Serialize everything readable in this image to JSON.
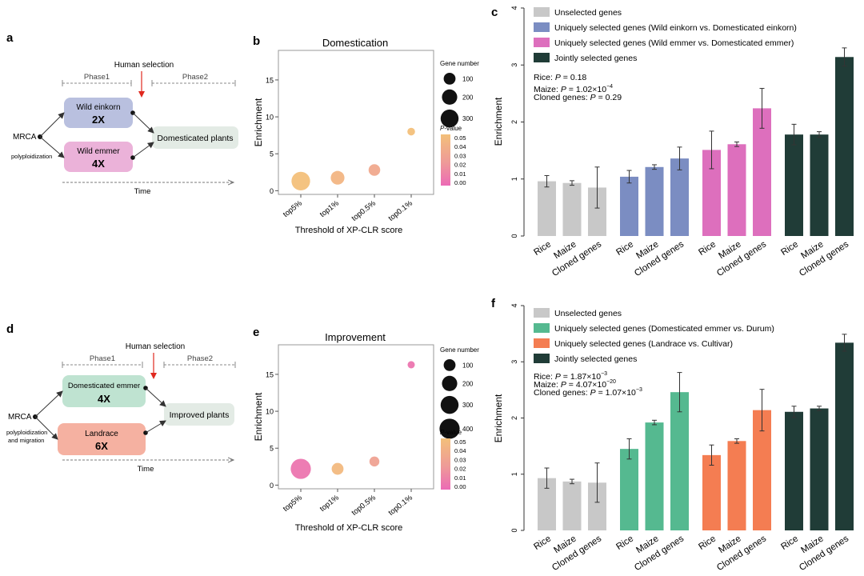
{
  "panel_labels": {
    "a": "a",
    "b": "b",
    "c": "c",
    "d": "d",
    "e": "e",
    "f": "f"
  },
  "colors": {
    "unselected": "#c8c8c8",
    "einkorn_sel": "#7b8dc2",
    "emmer_sel": "#dd6fbd",
    "joint": "#203c37",
    "durum_sel": "#55b990",
    "cultivar_sel": "#f47d52",
    "wild_einkorn_box": "#b9c0df",
    "wild_emmer_box": "#ebb2d9",
    "dom_emmer_box": "#bfe3d1",
    "landrace_box": "#f5b1a1",
    "plants_box": "#e3ebe5",
    "arrow_red": "#e0281e"
  },
  "diagrams": [
    {
      "human_selection": "Human selection",
      "phase1": "Phase1",
      "phase2": "Phase2",
      "mrca": "MRCA",
      "process": "polyploidization",
      "top_box": {
        "name": "Wild einkorn",
        "ploidy": "2X"
      },
      "bottom_box": {
        "name": "Wild emmer",
        "ploidy": "4X"
      },
      "target": "Domesticated plants",
      "time": "Time"
    },
    {
      "human_selection": "Human selection",
      "phase1": "Phase1",
      "phase2": "Phase2",
      "mrca": "MRCA",
      "process": "polyploidization",
      "process2": "and migration",
      "top_box": {
        "name": "Domesticated emmer",
        "ploidy": "4X"
      },
      "bottom_box": {
        "name": "Landrace",
        "ploidy": "6X"
      },
      "target": "Improved plants",
      "time": "Time"
    }
  ],
  "chart_data": [
    {
      "id": "b",
      "type": "scatter",
      "title": "Domestication",
      "xlabel": "Threshold of XP-CLR score",
      "ylabel": "Enrichment",
      "categories": [
        "top5%",
        "top1%",
        "top0.5%",
        "top0.1%"
      ],
      "y": [
        1.3,
        1.75,
        2.8,
        8.0
      ],
      "gene_number": [
        330,
        150,
        95,
        25
      ],
      "p_value": [
        0.05,
        0.042,
        0.033,
        0.05
      ],
      "ylim": [
        -0.5,
        19
      ],
      "yticks": [
        0,
        5,
        10,
        15
      ],
      "size_legend": {
        "title": "Gene number",
        "values": [
          100,
          200,
          300
        ]
      },
      "color_legend": {
        "title": "P-value",
        "ticks": [
          "0.05",
          "0.04",
          "0.03",
          "0.02",
          "0.01",
          "0.00"
        ]
      }
    },
    {
      "id": "e",
      "type": "scatter",
      "title": "Improvement",
      "xlabel": "Threshold of XP-CLR score",
      "ylabel": "Enrichment",
      "categories": [
        "top5%",
        "top1%",
        "top0.5%",
        "top0.1%"
      ],
      "y": [
        2.2,
        2.2,
        3.2,
        16.3
      ],
      "gene_number": [
        400,
        100,
        60,
        20
      ],
      "p_value": [
        0.005,
        0.045,
        0.028,
        0.005
      ],
      "ylim": [
        -0.5,
        19
      ],
      "yticks": [
        0,
        5,
        10,
        15
      ],
      "size_legend": {
        "title": "Gene number",
        "values": [
          100,
          200,
          300,
          400
        ]
      },
      "color_legend": {
        "title": "P-value",
        "ticks": [
          "0.05",
          "0.04",
          "0.03",
          "0.02",
          "0.01",
          "0.00"
        ]
      }
    },
    {
      "id": "c",
      "type": "bar",
      "ylabel": "Enrichment",
      "ylim": [
        0,
        4
      ],
      "yticks": [
        0,
        1,
        2,
        3,
        4
      ],
      "categories": [
        "Rice",
        "Maize",
        "Cloned genes"
      ],
      "series": [
        {
          "name": "Unselected genes",
          "color": "#c8c8c8",
          "values": [
            0.96,
            0.93,
            0.85
          ],
          "errors": [
            0.1,
            0.04,
            0.36
          ]
        },
        {
          "name": "Uniquely selected genes (Wild einkorn vs. Domesticated einkorn)",
          "color": "#7b8dc2",
          "values": [
            1.04,
            1.21,
            1.36
          ],
          "errors": [
            0.11,
            0.04,
            0.2
          ]
        },
        {
          "name": "Uniquely selected genes (Wild emmer vs. Domesticated emmer)",
          "color": "#dd6fbd",
          "values": [
            1.51,
            1.61,
            2.24
          ],
          "errors": [
            0.33,
            0.04,
            0.35
          ]
        },
        {
          "name": "Jointly selected genes",
          "color": "#203c37",
          "values": [
            1.78,
            1.78,
            3.14
          ],
          "errors": [
            0.18,
            0.05,
            0.16
          ]
        }
      ],
      "annotation": [
        {
          "label": "Rice: ",
          "p": "0.18",
          "exp": ""
        },
        {
          "label": "Maize: ",
          "p": "1.02×10",
          "exp": "−4"
        },
        {
          "label": "Cloned genes: ",
          "p": "0.29",
          "exp": ""
        }
      ]
    },
    {
      "id": "f",
      "type": "bar",
      "ylabel": "Enrichment",
      "ylim": [
        0,
        4
      ],
      "yticks": [
        0,
        1,
        2,
        3,
        4
      ],
      "categories": [
        "Rice",
        "Maize",
        "Cloned genes"
      ],
      "series": [
        {
          "name": "Unselected genes",
          "color": "#c8c8c8",
          "values": [
            0.93,
            0.87,
            0.85
          ],
          "errors": [
            0.18,
            0.04,
            0.35
          ]
        },
        {
          "name": "Uniquely selected genes (Domesticated emmer vs. Durum)",
          "color": "#55b990",
          "values": [
            1.45,
            1.92,
            2.46
          ],
          "errors": [
            0.18,
            0.04,
            0.35
          ]
        },
        {
          "name": "Uniquely selected genes (Landrace vs. Cultivar)",
          "color": "#f47d52",
          "values": [
            1.34,
            1.59,
            2.14
          ],
          "errors": [
            0.18,
            0.04,
            0.37
          ]
        },
        {
          "name": "Jointly selected genes",
          "color": "#203c37",
          "values": [
            2.11,
            2.17,
            3.34
          ],
          "errors": [
            0.1,
            0.04,
            0.15
          ]
        }
      ],
      "annotation": [
        {
          "label": "Rice: ",
          "p": "1.87×10",
          "exp": "−3"
        },
        {
          "label": "Maize: ",
          "p": "4.07×10",
          "exp": "−20"
        },
        {
          "label": "Cloned genes: ",
          "p": "1.07×10",
          "exp": "−3"
        }
      ]
    }
  ]
}
